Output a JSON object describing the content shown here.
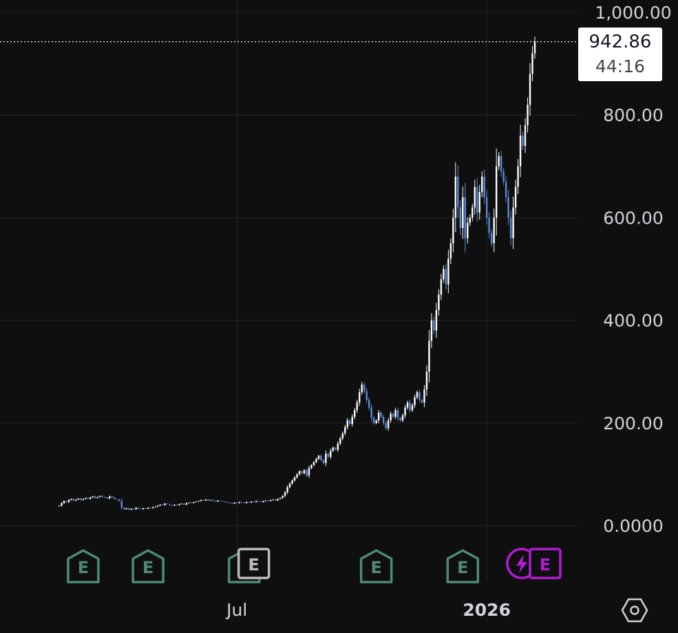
{
  "price_tag": {
    "price": "942.86",
    "countdown": "44:16"
  },
  "colors": {
    "background": "#0f0f0f",
    "grid": "#262626",
    "candle_up": "#ffffff",
    "candle_down": "#5b8fd9",
    "earnings_green": "#4e8c72",
    "earnings_gray": "#bdbdbd",
    "earnings_purple": "#b21bd6"
  },
  "chart_data": {
    "type": "candlestick",
    "title": "",
    "xlabel": "",
    "ylabel": "",
    "ylim": [
      0,
      1000
    ],
    "y_ticks": [
      {
        "value": 0,
        "label": "0.0000"
      },
      {
        "value": 200,
        "label": "200.00"
      },
      {
        "value": 400,
        "label": "400.00"
      },
      {
        "value": 600,
        "label": "600.00"
      },
      {
        "value": 800,
        "label": "800.00"
      },
      {
        "value": 1000,
        "label": "1,000.00"
      }
    ],
    "x_ticks": [
      {
        "label": "Jul",
        "index": 74,
        "bold": false
      },
      {
        "label": "2026",
        "index": 178,
        "bold": true
      }
    ],
    "grid": true,
    "last_price": 942.86,
    "closes": [
      39,
      44,
      48,
      46,
      50,
      52,
      49,
      51,
      53,
      50,
      52,
      54,
      52,
      55,
      57,
      54,
      56,
      58,
      56,
      55,
      53,
      57,
      55,
      52,
      51,
      48,
      35,
      32,
      34,
      31,
      33,
      32,
      35,
      33,
      32,
      34,
      33,
      35,
      34,
      36,
      37,
      39,
      41,
      40,
      43,
      42,
      40,
      39,
      41,
      40,
      42,
      43,
      41,
      44,
      45,
      44,
      46,
      47,
      48,
      50,
      49,
      51,
      49,
      50,
      48,
      47,
      49,
      48,
      47,
      46,
      45,
      44,
      43,
      45,
      44,
      46,
      45,
      44,
      46,
      45,
      47,
      46,
      48,
      47,
      46,
      48,
      49,
      48,
      50,
      51,
      49,
      52,
      54,
      58,
      65,
      75,
      82,
      88,
      94,
      100,
      106,
      102,
      108,
      98,
      112,
      118,
      124,
      130,
      136,
      128,
      122,
      140,
      134,
      146,
      152,
      148,
      160,
      170,
      180,
      192,
      205,
      198,
      212,
      225,
      240,
      260,
      275,
      262,
      245,
      230,
      210,
      200,
      205,
      220,
      212,
      200,
      190,
      205,
      218,
      212,
      225,
      210,
      205,
      215,
      230,
      240,
      225,
      235,
      250,
      260,
      245,
      240,
      265,
      300,
      360,
      400,
      380,
      420,
      450,
      480,
      500,
      470,
      520,
      550,
      600,
      680,
      620,
      580,
      640,
      560,
      590,
      600,
      620,
      660,
      610,
      650,
      680,
      640,
      600,
      570,
      550,
      600,
      700,
      720,
      690,
      670,
      640,
      600,
      560,
      620,
      660,
      700,
      760,
      740,
      780,
      820,
      880,
      920,
      942.86
    ],
    "earnings_markers": [
      {
        "index": 10,
        "style": "green",
        "label": "E"
      },
      {
        "index": 37,
        "style": "green",
        "label": "E"
      },
      {
        "index": 81,
        "style": "gray",
        "label": "E"
      },
      {
        "index": 132,
        "style": "green",
        "label": "E"
      },
      {
        "index": 168,
        "style": "green",
        "label": "E"
      },
      {
        "index": 200,
        "style": "purple-split",
        "label": "E"
      }
    ]
  }
}
